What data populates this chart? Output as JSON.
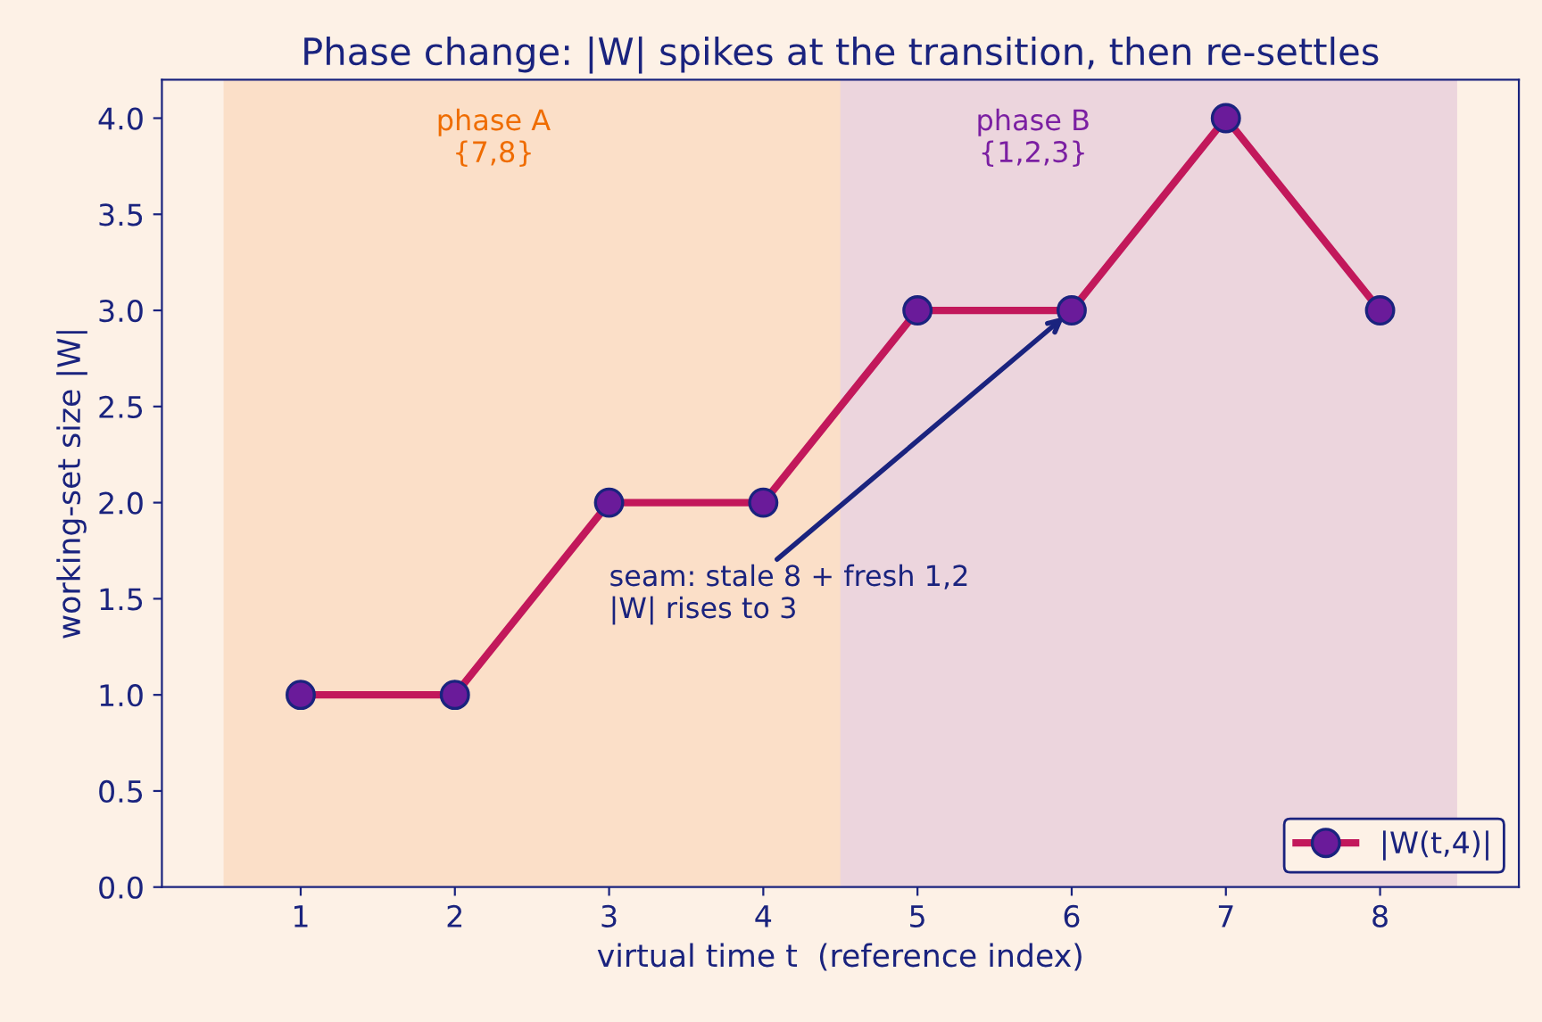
{
  "chart_data": {
    "type": "line",
    "title": "Phase change: |W| spikes at the transition, then re-settles",
    "xlabel": "virtual time t  (reference index)",
    "ylabel": "working-set size |W|",
    "x": [
      1,
      2,
      3,
      4,
      5,
      6,
      7,
      8
    ],
    "series": [
      {
        "name": "|W(t,4)|",
        "color": "#c2185b",
        "values": [
          1,
          1,
          2,
          2,
          3,
          3,
          4,
          3
        ]
      }
    ],
    "marker": "circle",
    "line_style": "solid",
    "xlim": [
      0.1,
      8.9
    ],
    "xticks": [
      1,
      2,
      3,
      4,
      5,
      6,
      7,
      8
    ],
    "ylim": [
      0,
      4.2
    ],
    "yticks": [
      {
        "value": 0,
        "label": "0.0"
      },
      {
        "value": 0.5,
        "label": "0.5"
      },
      {
        "value": 1,
        "label": "1.0"
      },
      {
        "value": 1.5,
        "label": "1.5"
      },
      {
        "value": 2,
        "label": "2.0"
      },
      {
        "value": 2.5,
        "label": "2.5"
      },
      {
        "value": 3,
        "label": "3.0"
      },
      {
        "value": 3.5,
        "label": "3.5"
      },
      {
        "value": 4,
        "label": "4.0"
      }
    ],
    "bands": [
      {
        "axis": "x",
        "from": 0.5,
        "to": 4.5,
        "label": "phase A\n{7,8}",
        "color": "#ef6c00"
      },
      {
        "axis": "x",
        "from": 4.5,
        "to": 8.5,
        "label": "phase B\n{1,2,3}",
        "color": "#7b1fa2"
      }
    ],
    "annotations": [
      {
        "text": "seam: stale 8 + fresh 1,2\n|W| rises to 3",
        "x": 6,
        "y": 3
      }
    ],
    "legend": "bottom right",
    "grid": false
  }
}
